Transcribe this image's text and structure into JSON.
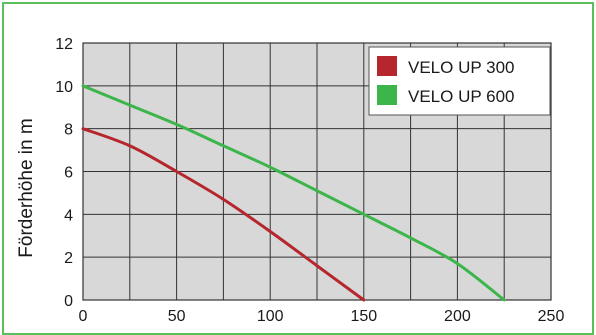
{
  "chart_data": {
    "type": "line",
    "title": "",
    "xlabel": "",
    "ylabel": "Förderhöhe in m",
    "xlim": [
      0,
      250
    ],
    "ylim": [
      0,
      12
    ],
    "xticks": [
      0,
      50,
      100,
      150,
      200,
      250
    ],
    "yticks": [
      0,
      2,
      4,
      6,
      8,
      10,
      12
    ],
    "grid": true,
    "legend_position": "top-right",
    "series": [
      {
        "name": "VELO UP 300",
        "color": "#b5272d",
        "x": [
          0,
          25,
          50,
          75,
          100,
          125,
          150
        ],
        "y": [
          8,
          7.2,
          6.0,
          4.7,
          3.2,
          1.6,
          0
        ]
      },
      {
        "name": "VELO UP 600",
        "color": "#3cb54a",
        "x": [
          0,
          25,
          50,
          75,
          100,
          125,
          150,
          175,
          200,
          225
        ],
        "y": [
          10,
          9.1,
          8.2,
          7.2,
          6.2,
          5.1,
          4.0,
          2.9,
          1.7,
          0
        ]
      }
    ]
  },
  "colors": {
    "frame_border": "#5bbf5b",
    "plot_background": "#d8d8d8",
    "grid": "#333333"
  }
}
